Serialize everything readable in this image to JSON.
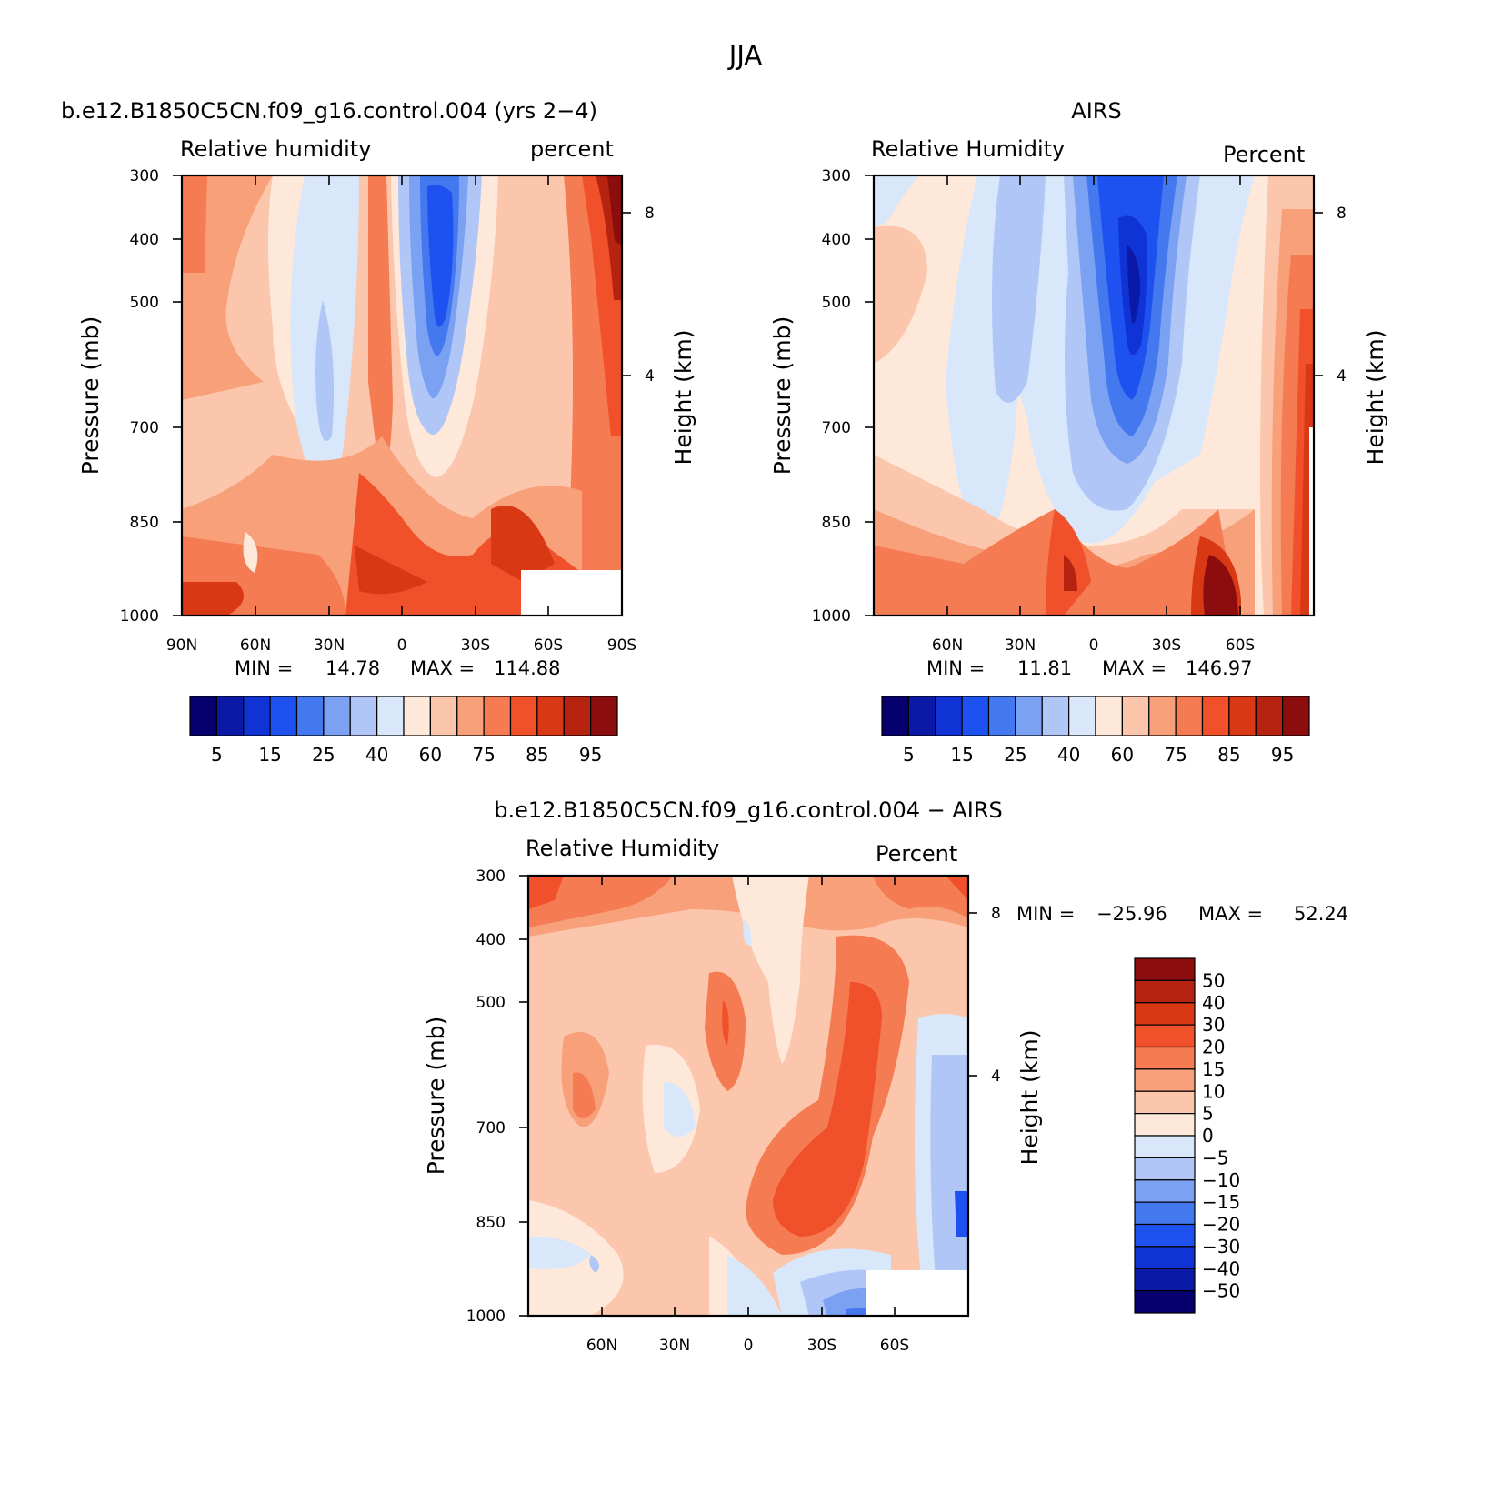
{
  "figure": {
    "title": "JJA"
  },
  "chart_data": [
    {
      "type": "heatmap",
      "title": "b.e12.B1850C5CN.f09_g16.control.004 (yrs 2−4)",
      "left_label": "Relative humidity",
      "right_label": "percent",
      "ylabel": "Pressure (mb)",
      "y2label": "Height (km)",
      "x_ticks": [
        "90N",
        "60N",
        "30N",
        "0",
        "30S",
        "60S",
        "90S"
      ],
      "y_ticks": [
        "300",
        "400",
        "500",
        "700",
        "850",
        "1000"
      ],
      "y2_ticks": [
        "8",
        "4"
      ],
      "stats": {
        "min_label": "MIN =",
        "min": "14.78",
        "max_label": "MAX =",
        "max": "114.88"
      },
      "colorbar": {
        "labels": [
          "5",
          "15",
          "25",
          "40",
          "60",
          "75",
          "85",
          "95"
        ],
        "colors": [
          "#05006e",
          "#0a1aa6",
          "#0f33d4",
          "#1e52f0",
          "#4478ee",
          "#7aa1f2",
          "#b0c6f6",
          "#d8e7fa",
          "#fde8da",
          "#fcc6ac",
          "#f8a07a",
          "#f47b52",
          "#f0512a",
          "#d83814",
          "#b62310",
          "#8c0d0d"
        ]
      }
    },
    {
      "type": "heatmap",
      "title": "AIRS",
      "left_label": "Relative Humidity",
      "right_label": "Percent",
      "ylabel": "Pressure (mb)",
      "y2label": "Height (km)",
      "x_ticks": [
        "60N",
        "30N",
        "0",
        "30S",
        "60S"
      ],
      "y_ticks": [
        "300",
        "400",
        "500",
        "700",
        "850",
        "1000"
      ],
      "y2_ticks": [
        "8",
        "4"
      ],
      "stats": {
        "min_label": "MIN =",
        "min": "11.81",
        "max_label": "MAX =",
        "max": "146.97"
      },
      "colorbar": {
        "labels": [
          "5",
          "15",
          "25",
          "40",
          "60",
          "75",
          "85",
          "95"
        ],
        "colors": [
          "#05006e",
          "#0a1aa6",
          "#0f33d4",
          "#1e52f0",
          "#4478ee",
          "#7aa1f2",
          "#b0c6f6",
          "#d8e7fa",
          "#fde8da",
          "#fcc6ac",
          "#f8a07a",
          "#f47b52",
          "#f0512a",
          "#d83814",
          "#b62310",
          "#8c0d0d"
        ]
      }
    },
    {
      "type": "heatmap",
      "title": "b.e12.B1850C5CN.f09_g16.control.004 − AIRS",
      "left_label": "Relative Humidity",
      "right_label": "Percent",
      "ylabel": "Pressure (mb)",
      "y2label": "Height (km)",
      "x_ticks": [
        "60N",
        "30N",
        "0",
        "30S",
        "60S"
      ],
      "y_ticks": [
        "300",
        "400",
        "500",
        "700",
        "850",
        "1000"
      ],
      "y2_ticks": [
        "8",
        "4"
      ],
      "stats": {
        "min_label": "MIN =",
        "min": "−25.96",
        "max_label": "MAX =",
        "max": "52.24"
      },
      "colorbar": {
        "labels": [
          "50",
          "40",
          "30",
          "20",
          "15",
          "10",
          "5",
          "0",
          "−5",
          "−10",
          "−15",
          "−20",
          "−30",
          "−40",
          "−50"
        ],
        "colors": [
          "#8c0d0d",
          "#b62310",
          "#d83814",
          "#f0512a",
          "#f47b52",
          "#f8a07a",
          "#fcc6ac",
          "#fde8da",
          "#d8e7fa",
          "#b0c6f6",
          "#7aa1f2",
          "#4478ee",
          "#1e52f0",
          "#0f33d4",
          "#0a1aa6",
          "#05006e"
        ]
      }
    }
  ]
}
